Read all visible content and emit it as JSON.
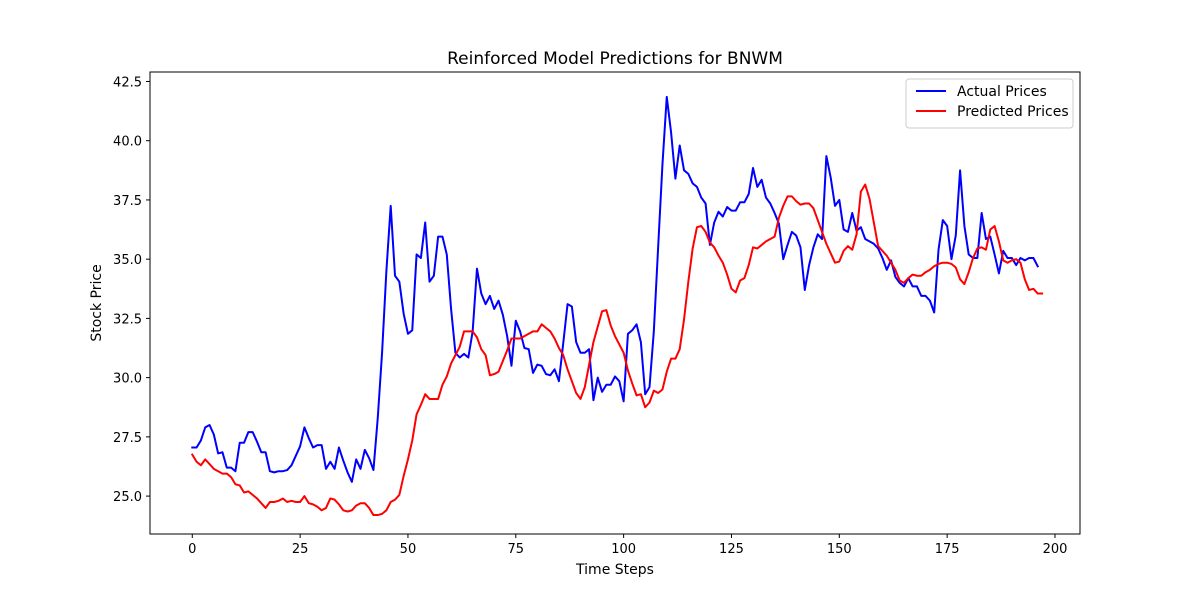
{
  "chart_data": {
    "type": "line",
    "title": "Reinforced Model Predictions for BNWM",
    "xlabel": "Time Steps",
    "ylabel": "Stock Price",
    "xlim": [
      -9.8,
      205.8
    ],
    "ylim": [
      23.4,
      42.9
    ],
    "xticks": [
      0,
      25,
      50,
      75,
      100,
      125,
      150,
      175,
      200
    ],
    "xtick_labels": [
      "0",
      "25",
      "50",
      "75",
      "100",
      "125",
      "150",
      "175",
      "200"
    ],
    "yticks": [
      25.0,
      27.5,
      30.0,
      32.5,
      35.0,
      37.5,
      40.0,
      42.5
    ],
    "ytick_labels": [
      "25.0",
      "27.5",
      "30.0",
      "32.5",
      "35.0",
      "37.5",
      "40.0",
      "42.5"
    ],
    "grid": false,
    "legend_position": "top-right",
    "series": [
      {
        "name": "Actual Prices",
        "color": "#0000ff",
        "x_start": 0,
        "values": [
          27.05,
          27.05,
          27.35,
          27.9,
          28.0,
          27.6,
          26.8,
          26.85,
          26.2,
          26.2,
          26.05,
          27.25,
          27.25,
          27.7,
          27.7,
          27.3,
          26.85,
          26.85,
          26.05,
          26.0,
          26.05,
          26.05,
          26.1,
          26.3,
          26.7,
          27.1,
          27.9,
          27.45,
          27.05,
          27.15,
          27.15,
          26.15,
          26.45,
          26.15,
          27.05,
          26.5,
          26.0,
          25.6,
          26.55,
          26.15,
          26.95,
          26.6,
          26.1,
          28.3,
          31.05,
          34.5,
          37.25,
          34.3,
          34.05,
          32.7,
          31.85,
          32.0,
          35.2,
          35.05,
          36.55,
          34.05,
          34.3,
          35.95,
          35.95,
          35.2,
          32.9,
          31.05,
          30.85,
          31.0,
          30.85,
          31.95,
          34.6,
          33.55,
          33.1,
          33.45,
          32.9,
          33.25,
          32.65,
          31.75,
          30.5,
          32.4,
          31.95,
          31.25,
          31.2,
          30.2,
          30.55,
          30.5,
          30.15,
          30.1,
          30.35,
          29.85,
          31.45,
          33.1,
          33.0,
          31.5,
          31.05,
          31.05,
          31.2,
          29.05,
          30.0,
          29.4,
          29.7,
          29.7,
          30.05,
          29.85,
          29.0,
          31.85,
          32.0,
          32.25,
          31.5,
          29.3,
          29.6,
          31.95,
          35.5,
          39.0,
          41.85,
          40.35,
          38.4,
          39.8,
          38.75,
          38.6,
          38.2,
          38.05,
          37.6,
          37.35,
          35.6,
          36.55,
          37.0,
          36.8,
          37.2,
          37.05,
          37.05,
          37.4,
          37.4,
          37.75,
          38.85,
          38.05,
          38.35,
          37.6,
          37.35,
          36.95,
          36.5,
          35.0,
          35.6,
          36.15,
          36.0,
          35.5,
          33.7,
          34.75,
          35.5,
          36.05,
          35.85,
          39.35,
          38.45,
          37.25,
          37.5,
          36.25,
          36.15,
          36.95,
          36.2,
          36.35,
          35.85,
          35.75,
          35.65,
          35.45,
          35.05,
          34.55,
          34.95,
          34.25,
          34.0,
          33.85,
          34.2,
          33.85,
          33.85,
          33.45,
          33.45,
          33.25,
          32.75,
          35.4,
          36.65,
          36.4,
          35.0,
          36.0,
          38.75,
          36.4,
          35.2,
          35.05,
          35.05,
          36.95,
          35.85,
          35.95,
          35.2,
          34.4,
          35.35,
          35.05,
          35.05,
          34.75,
          35.05,
          34.95,
          35.05,
          35.05,
          34.7
        ]
      },
      {
        "name": "Predicted Prices",
        "color": "#ff0000",
        "x_start": 0,
        "values": [
          26.75,
          26.45,
          26.3,
          26.55,
          26.35,
          26.15,
          26.05,
          25.95,
          25.95,
          25.8,
          25.5,
          25.45,
          25.15,
          25.2,
          25.05,
          24.9,
          24.7,
          24.5,
          24.75,
          24.75,
          24.8,
          24.9,
          24.75,
          24.8,
          24.75,
          24.75,
          25.0,
          24.7,
          24.65,
          24.55,
          24.4,
          24.5,
          24.9,
          24.85,
          24.65,
          24.4,
          24.35,
          24.4,
          24.6,
          24.7,
          24.7,
          24.5,
          24.2,
          24.2,
          24.25,
          24.4,
          24.75,
          24.85,
          25.05,
          25.85,
          26.55,
          27.35,
          28.45,
          28.85,
          29.3,
          29.1,
          29.1,
          29.1,
          29.7,
          30.05,
          30.6,
          30.95,
          31.3,
          31.95,
          31.95,
          31.95,
          31.7,
          31.2,
          30.95,
          30.1,
          30.15,
          30.25,
          30.7,
          31.15,
          31.65,
          31.65,
          31.65,
          31.75,
          31.85,
          31.95,
          31.95,
          32.25,
          32.1,
          31.95,
          31.65,
          31.25,
          30.95,
          30.35,
          29.85,
          29.35,
          29.1,
          29.6,
          30.55,
          31.5,
          32.15,
          32.8,
          32.85,
          32.2,
          31.75,
          31.4,
          31.05,
          30.3,
          29.75,
          29.25,
          29.3,
          28.75,
          28.95,
          29.45,
          29.35,
          29.5,
          30.25,
          30.8,
          30.8,
          31.2,
          32.45,
          34.05,
          35.45,
          36.35,
          36.4,
          36.15,
          35.7,
          35.5,
          35.15,
          34.85,
          34.35,
          33.75,
          33.6,
          34.1,
          34.2,
          34.75,
          35.5,
          35.45,
          35.6,
          35.75,
          35.85,
          35.95,
          36.75,
          37.25,
          37.65,
          37.65,
          37.45,
          37.3,
          37.35,
          37.35,
          37.15,
          36.65,
          36.15,
          35.65,
          35.25,
          34.85,
          34.9,
          35.35,
          35.55,
          35.4,
          36.05,
          37.85,
          38.15,
          37.55,
          36.55,
          35.55,
          35.35,
          35.15,
          34.85,
          34.55,
          34.1,
          34.0,
          34.2,
          34.35,
          34.3,
          34.3,
          34.45,
          34.55,
          34.7,
          34.8,
          34.85,
          34.85,
          34.8,
          34.65,
          34.15,
          33.95,
          34.45,
          35.05,
          35.45,
          35.5,
          35.4,
          36.25,
          36.4,
          35.75,
          34.95,
          34.85,
          34.95,
          35.0,
          34.85,
          34.15,
          33.7,
          33.75,
          33.55,
          33.55
        ]
      }
    ]
  }
}
